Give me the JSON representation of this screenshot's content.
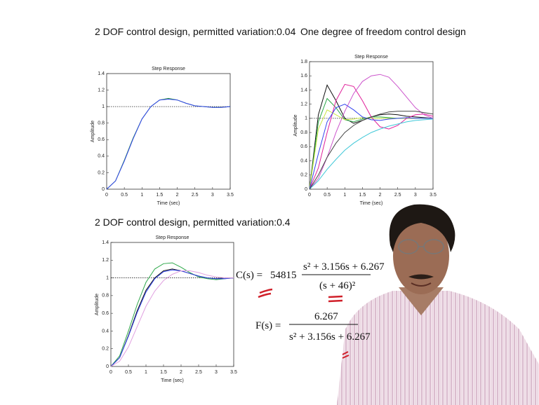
{
  "chart_data": [
    {
      "type": "line",
      "title": "2 DOF control design, permitted variation:0.04",
      "subtitle": "Step Response",
      "x_label": "Time (sec)",
      "y_label": "Amplitude",
      "x": [
        0,
        0.25,
        0.5,
        0.75,
        1,
        1.25,
        1.5,
        1.75,
        2,
        2.25,
        2.5,
        2.75,
        3,
        3.25,
        3.5
      ],
      "xlim": [
        0,
        3.5
      ],
      "xticks": [
        0,
        0.5,
        1,
        1.5,
        2,
        2.5,
        3,
        3.5
      ],
      "ylim": [
        0,
        1.4
      ],
      "yticks": [
        0,
        0.2,
        0.4,
        0.6,
        0.8,
        1,
        1.2,
        1.4
      ],
      "reference": 1,
      "series": [
        {
          "color": "#2a9a3a",
          "values": [
            0,
            0.1,
            0.35,
            0.62,
            0.85,
            1.0,
            1.08,
            1.1,
            1.08,
            1.04,
            1.01,
            1.0,
            0.99,
            0.99,
            1.0
          ]
        },
        {
          "color": "#3344ee",
          "values": [
            0,
            0.1,
            0.34,
            0.61,
            0.85,
            1.0,
            1.08,
            1.09,
            1.08,
            1.04,
            1.01,
            1.0,
            0.99,
            0.99,
            1.0
          ]
        }
      ]
    },
    {
      "type": "line",
      "title": "One degree of freedom control design",
      "subtitle": "Step Response",
      "x_label": "Time (sec)",
      "y_label": "Amplitude",
      "x": [
        0,
        0.25,
        0.5,
        0.75,
        1,
        1.25,
        1.5,
        1.75,
        2,
        2.25,
        2.5,
        2.75,
        3,
        3.25,
        3.5
      ],
      "xlim": [
        0,
        3.5
      ],
      "xticks": [
        0,
        0.5,
        1,
        1.5,
        2,
        2.5,
        3,
        3.5
      ],
      "ylim": [
        0,
        1.8
      ],
      "yticks": [
        0,
        0.2,
        0.4,
        0.6,
        0.8,
        1,
        1.2,
        1.4,
        1.6,
        1.8
      ],
      "reference": 1,
      "series": [
        {
          "color": "#111111",
          "values": [
            0,
            1.05,
            1.47,
            1.25,
            1.0,
            0.93,
            0.97,
            1.02,
            1.05,
            1.06,
            1.05,
            1.03,
            1.02,
            1.01,
            1.0
          ]
        },
        {
          "color": "#2ea84a",
          "values": [
            0,
            0.95,
            1.28,
            1.15,
            0.98,
            0.95,
            0.99,
            1.02,
            1.02,
            1.01,
            1.0,
            1.0,
            1.0,
            1.0,
            1.0
          ]
        },
        {
          "color": "#c8e640",
          "values": [
            0,
            0.85,
            1.12,
            1.05,
            0.98,
            0.99,
            1.01,
            1.0,
            1.0,
            1.0,
            1.0,
            1.0,
            1.0,
            1.0,
            1.0
          ]
        },
        {
          "color": "#e0209a",
          "values": [
            0,
            0.3,
            0.8,
            1.25,
            1.48,
            1.45,
            1.25,
            1.02,
            0.88,
            0.85,
            0.9,
            1.0,
            1.05,
            1.06,
            1.03
          ]
        },
        {
          "color": "#3344ee",
          "values": [
            0,
            0.5,
            0.95,
            1.15,
            1.2,
            1.12,
            1.02,
            0.98,
            0.97,
            0.99,
            1.0,
            1.01,
            1.0,
            1.0,
            1.0
          ]
        },
        {
          "color": "#cc55cc",
          "values": [
            0,
            0.15,
            0.45,
            0.8,
            1.1,
            1.35,
            1.52,
            1.6,
            1.62,
            1.58,
            1.45,
            1.3,
            1.15,
            1.05,
            1.0
          ]
        },
        {
          "color": "#40c8d8",
          "values": [
            0,
            0.12,
            0.28,
            0.42,
            0.55,
            0.65,
            0.73,
            0.8,
            0.85,
            0.89,
            0.92,
            0.95,
            0.97,
            0.98,
            0.99
          ]
        },
        {
          "color": "#444444",
          "values": [
            0,
            0.2,
            0.45,
            0.65,
            0.8,
            0.9,
            0.97,
            1.02,
            1.06,
            1.09,
            1.1,
            1.1,
            1.1,
            1.08,
            1.06
          ]
        }
      ]
    },
    {
      "type": "line",
      "title": "2 DOF control design, permitted variation:0.4",
      "subtitle": "Step Response",
      "x_label": "Time (sec)",
      "y_label": "Amplitude",
      "x": [
        0,
        0.25,
        0.5,
        0.75,
        1,
        1.25,
        1.5,
        1.75,
        2,
        2.25,
        2.5,
        2.75,
        3,
        3.25,
        3.5
      ],
      "xlim": [
        0,
        3.5
      ],
      "xticks": [
        0,
        0.5,
        1,
        1.5,
        2,
        2.5,
        3,
        3.5
      ],
      "ylim": [
        0,
        1.4
      ],
      "yticks": [
        0,
        0.2,
        0.4,
        0.6,
        0.8,
        1,
        1.2,
        1.4
      ],
      "reference": 1,
      "series": [
        {
          "color": "#2ea84a",
          "values": [
            0,
            0.12,
            0.4,
            0.7,
            0.95,
            1.1,
            1.16,
            1.17,
            1.12,
            1.06,
            1.01,
            0.99,
            0.98,
            0.99,
            1.0
          ]
        },
        {
          "color": "#111111",
          "values": [
            0,
            0.1,
            0.35,
            0.63,
            0.86,
            1.0,
            1.08,
            1.1,
            1.08,
            1.05,
            1.02,
            1.0,
            0.99,
            1.0,
            1.0
          ]
        },
        {
          "color": "#3344ee",
          "values": [
            0,
            0.1,
            0.34,
            0.61,
            0.84,
            0.99,
            1.07,
            1.09,
            1.08,
            1.05,
            1.02,
            1.0,
            0.99,
            0.99,
            1.0
          ]
        },
        {
          "color": "#e0a0e0",
          "values": [
            0,
            0.06,
            0.22,
            0.45,
            0.68,
            0.85,
            0.97,
            1.04,
            1.08,
            1.08,
            1.06,
            1.03,
            1.01,
            1.0,
            1.0
          ]
        }
      ]
    }
  ],
  "equations": [
    {
      "lhs": "C(s) =",
      "gain": "54815",
      "numerator": "s² + 3.156s + 6.267",
      "denominator": "(s + 46)²"
    },
    {
      "lhs": "F(s) =",
      "numerator": "6.267",
      "denominator": "s² + 3.156s + 6.267"
    }
  ]
}
